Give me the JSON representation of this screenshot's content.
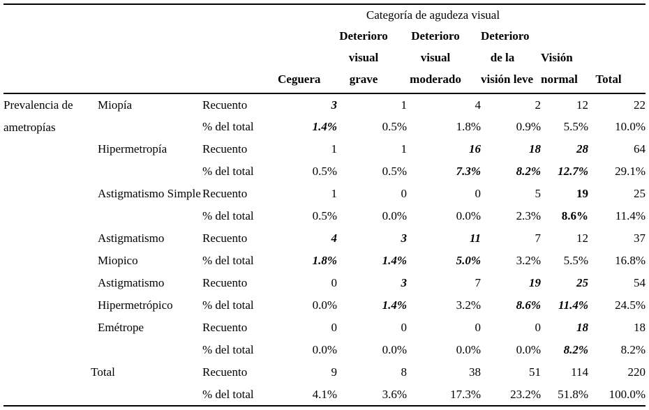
{
  "table": {
    "spanner": "Categoría de agudeza visual",
    "row_group_label": "Prevalencia de ametropías",
    "col_headers": [
      "Ceguera",
      "Deterioro\nvisual\ngrave",
      "Deterioro\nvisual\nmoderado",
      "Deterioro\nde la\nvisión leve",
      "Visión\nnormal",
      "Total"
    ],
    "stat_labels": {
      "count": "Recuento",
      "pct": "% del total"
    },
    "groups": [
      {
        "label": "Miopía",
        "rows": [
          {
            "stat": "Recuento",
            "cells": [
              {
                "v": "3",
                "e": "bi"
              },
              {
                "v": "1"
              },
              {
                "v": "4"
              },
              {
                "v": "2"
              },
              {
                "v": "12"
              },
              {
                "v": "22"
              }
            ]
          },
          {
            "stat": "% del total",
            "cells": [
              {
                "v": "1.4%",
                "e": "bi"
              },
              {
                "v": "0.5%"
              },
              {
                "v": "1.8%"
              },
              {
                "v": "0.9%"
              },
              {
                "v": "5.5%"
              },
              {
                "v": "10.0%"
              }
            ]
          }
        ]
      },
      {
        "label": "Hipermetropía",
        "rows": [
          {
            "stat": "Recuento",
            "cells": [
              {
                "v": "1"
              },
              {
                "v": "1"
              },
              {
                "v": "16",
                "e": "bi"
              },
              {
                "v": "18",
                "e": "bi"
              },
              {
                "v": "28",
                "e": "bi"
              },
              {
                "v": "64"
              }
            ]
          },
          {
            "stat": "% del total",
            "cells": [
              {
                "v": "0.5%"
              },
              {
                "v": "0.5%"
              },
              {
                "v": "7.3%",
                "e": "bi"
              },
              {
                "v": "8.2%",
                "e": "bi"
              },
              {
                "v": "12.7%",
                "e": "bi"
              },
              {
                "v": "29.1%"
              }
            ]
          }
        ]
      },
      {
        "label": "Astigmatismo Simple",
        "rows": [
          {
            "stat": "Recuento",
            "cells": [
              {
                "v": "1"
              },
              {
                "v": "0"
              },
              {
                "v": "0"
              },
              {
                "v": "5"
              },
              {
                "v": "19",
                "e": "b"
              },
              {
                "v": "25"
              }
            ]
          },
          {
            "stat": "% del total",
            "cells": [
              {
                "v": "0.5%"
              },
              {
                "v": "0.0%"
              },
              {
                "v": "0.0%"
              },
              {
                "v": "2.3%"
              },
              {
                "v": "8.6%",
                "e": "b"
              },
              {
                "v": "11.4%"
              }
            ]
          }
        ]
      },
      {
        "label": "Astigmatismo Miopico",
        "rows": [
          {
            "stat": "Recuento",
            "cells": [
              {
                "v": "4",
                "e": "bi"
              },
              {
                "v": "3",
                "e": "bi"
              },
              {
                "v": "11",
                "e": "bi"
              },
              {
                "v": "7"
              },
              {
                "v": "12"
              },
              {
                "v": "37"
              }
            ]
          },
          {
            "stat": "% del total",
            "cells": [
              {
                "v": "1.8%",
                "e": "bi"
              },
              {
                "v": "1.4%",
                "e": "bi"
              },
              {
                "v": "5.0%",
                "e": "bi"
              },
              {
                "v": "3.2%"
              },
              {
                "v": "5.5%"
              },
              {
                "v": "16.8%"
              }
            ]
          }
        ]
      },
      {
        "label": "Astigmatismo Hipermetrópico",
        "rows": [
          {
            "stat": "Recuento",
            "cells": [
              {
                "v": "0"
              },
              {
                "v": "3",
                "e": "bi"
              },
              {
                "v": "7"
              },
              {
                "v": "19",
                "e": "bi"
              },
              {
                "v": "25",
                "e": "bi"
              },
              {
                "v": "54"
              }
            ]
          },
          {
            "stat": "% del total",
            "cells": [
              {
                "v": "0.0%"
              },
              {
                "v": "1.4%",
                "e": "bi"
              },
              {
                "v": "3.2%"
              },
              {
                "v": "8.6%",
                "e": "bi"
              },
              {
                "v": "11.4%",
                "e": "bi"
              },
              {
                "v": "24.5%"
              }
            ]
          }
        ]
      },
      {
        "label": "Emétrope",
        "rows": [
          {
            "stat": "Recuento",
            "cells": [
              {
                "v": "0"
              },
              {
                "v": "0"
              },
              {
                "v": "0"
              },
              {
                "v": "0"
              },
              {
                "v": "18",
                "e": "bi"
              },
              {
                "v": "18"
              }
            ]
          },
          {
            "stat": "% del total",
            "cells": [
              {
                "v": "0.0%"
              },
              {
                "v": "0.0%"
              },
              {
                "v": "0.0%"
              },
              {
                "v": "0.0%"
              },
              {
                "v": "8.2%",
                "e": "bi"
              },
              {
                "v": "8.2%"
              }
            ]
          }
        ]
      }
    ],
    "total_group": {
      "label": "Total",
      "rows": [
        {
          "stat": "Recuento",
          "cells": [
            {
              "v": "9"
            },
            {
              "v": "8"
            },
            {
              "v": "38"
            },
            {
              "v": "51"
            },
            {
              "v": "114"
            },
            {
              "v": "220"
            }
          ]
        },
        {
          "stat": "% del total",
          "cells": [
            {
              "v": "4.1%"
            },
            {
              "v": "3.6%"
            },
            {
              "v": "17.3%"
            },
            {
              "v": "23.2%"
            },
            {
              "v": "51.8%"
            },
            {
              "v": "100.0%"
            }
          ]
        }
      ]
    },
    "colors": {
      "text": "#000000",
      "background": "#ffffff",
      "rule": "#000000"
    }
  }
}
